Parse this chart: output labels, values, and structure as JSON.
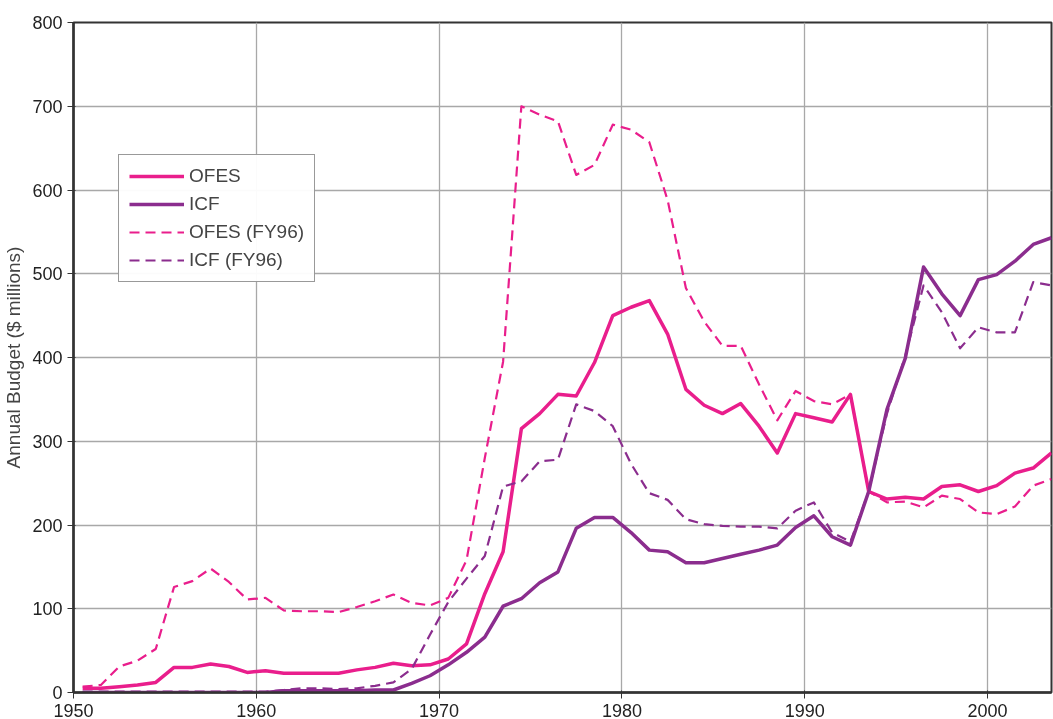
{
  "chart_data": {
    "type": "line",
    "ylabel": "Annual Budget ($ millions)",
    "x": [
      1950.5,
      1951.5,
      1952.5,
      1953.5,
      1954.5,
      1955.5,
      1956.5,
      1957.5,
      1958.5,
      1959.5,
      1960.5,
      1961.5,
      1962.5,
      1963.5,
      1964.5,
      1965.5,
      1966.5,
      1967.5,
      1968.5,
      1969.5,
      1970.5,
      1971.5,
      1972.5,
      1973.5,
      1974.5,
      1975.5,
      1976.5,
      1977.5,
      1978.5,
      1979.5,
      1980.5,
      1981.5,
      1982.5,
      1983.5,
      1984.5,
      1985.5,
      1986.5,
      1987.5,
      1988.5,
      1989.5,
      1990.5,
      1991.5,
      1992.5,
      1993.5,
      1994.5,
      1995.5,
      1996.5,
      1997.5,
      1998.5,
      1999.5,
      2000.5,
      2001.5,
      2002.5,
      2003.5
    ],
    "series": [
      {
        "name": "OFES",
        "color": "#e91e8c",
        "line_style": "solid",
        "values": [
          5,
          5,
          7,
          9,
          12,
          30,
          30,
          34,
          31,
          24,
          26,
          23,
          23,
          23,
          23,
          27,
          30,
          35,
          32,
          33,
          40,
          58,
          118,
          168,
          315,
          333,
          356,
          354,
          394,
          450,
          460,
          468,
          428,
          362,
          343,
          333,
          345,
          318,
          286,
          333,
          328,
          323,
          356,
          240,
          231,
          233,
          231,
          246,
          248,
          240,
          247,
          262,
          268,
          286
        ]
      },
      {
        "name": "ICF",
        "color": "#8b2d8e",
        "line_style": "solid",
        "values": [
          0,
          0,
          0,
          0,
          0,
          0,
          0,
          0,
          0,
          0,
          0,
          2,
          2,
          2,
          2,
          2,
          3,
          3,
          11,
          20,
          33,
          48,
          66,
          103,
          112,
          131,
          144,
          196,
          209,
          209,
          191,
          170,
          168,
          155,
          155,
          160,
          165,
          170,
          176,
          197,
          211,
          186,
          176,
          240,
          338,
          399,
          508,
          476,
          450,
          493,
          499,
          515,
          535,
          543
        ]
      },
      {
        "name": "OFES (FY96)",
        "color": "#e91e8c",
        "line_style": "dashed",
        "values": [
          7,
          9,
          31,
          38,
          52,
          126,
          133,
          148,
          132,
          111,
          113,
          98,
          97,
          97,
          96,
          102,
          109,
          117,
          107,
          104,
          113,
          158,
          280,
          395,
          700,
          690,
          682,
          618,
          630,
          678,
          672,
          657,
          588,
          483,
          443,
          414,
          414,
          368,
          325,
          360,
          348,
          344,
          356,
          240,
          227,
          228,
          221,
          235,
          231,
          215,
          213,
          222,
          247,
          255
        ]
      },
      {
        "name": "ICF (FY96)",
        "color": "#8b2d8e",
        "line_style": "dashed",
        "values": [
          1,
          1,
          1,
          1,
          1,
          1,
          1,
          1,
          1,
          1,
          1,
          3,
          5,
          5,
          4,
          5,
          8,
          12,
          28,
          69,
          108,
          136,
          163,
          246,
          252,
          276,
          278,
          344,
          336,
          318,
          273,
          238,
          230,
          207,
          201,
          199,
          198,
          198,
          196,
          217,
          227,
          191,
          180,
          240,
          333,
          402,
          486,
          454,
          411,
          436,
          430,
          430,
          490,
          486
        ]
      }
    ],
    "xlim": [
      1950,
      2003.5
    ],
    "xticks": [
      1950,
      1960,
      1970,
      1980,
      1990,
      2000
    ],
    "ylim": [
      0,
      800
    ],
    "yticks": [
      0,
      100,
      200,
      300,
      400,
      500,
      600,
      700,
      800
    ],
    "grid": true,
    "legend": "top left"
  }
}
